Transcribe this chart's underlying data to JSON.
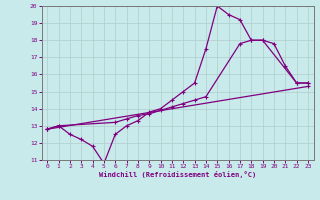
{
  "xlabel": "Windchill (Refroidissement éolien,°C)",
  "bg_color": "#c8eaea",
  "line_color": "#800080",
  "grid_color": "#b0cccc",
  "xlim": [
    -0.5,
    23.5
  ],
  "ylim": [
    11,
    20
  ],
  "xticks": [
    0,
    1,
    2,
    3,
    4,
    5,
    6,
    7,
    8,
    9,
    10,
    11,
    12,
    13,
    14,
    15,
    16,
    17,
    18,
    19,
    20,
    21,
    22,
    23
  ],
  "yticks": [
    11,
    12,
    13,
    14,
    15,
    16,
    17,
    18,
    19,
    20
  ],
  "line1_x": [
    0,
    1,
    2,
    3,
    4,
    5,
    6,
    7,
    8,
    9,
    10,
    11,
    12,
    13,
    14,
    15,
    16,
    17,
    18,
    19,
    20,
    21,
    22,
    23
  ],
  "line1_y": [
    12.8,
    13.0,
    12.5,
    12.2,
    11.8,
    10.8,
    12.5,
    13.0,
    13.3,
    13.8,
    14.0,
    14.5,
    15.0,
    15.5,
    17.5,
    20.0,
    19.5,
    19.2,
    18.0,
    18.0,
    17.8,
    16.5,
    15.5,
    15.5
  ],
  "line2_x": [
    0,
    1,
    6,
    7,
    8,
    9,
    10,
    11,
    12,
    13,
    14,
    17,
    18,
    19,
    22,
    23
  ],
  "line2_y": [
    12.8,
    13.0,
    13.2,
    13.4,
    13.6,
    13.7,
    13.9,
    14.1,
    14.3,
    14.5,
    14.7,
    17.8,
    18.0,
    18.0,
    15.5,
    15.5
  ],
  "line3_x": [
    0,
    23
  ],
  "line3_y": [
    12.8,
    15.3
  ]
}
